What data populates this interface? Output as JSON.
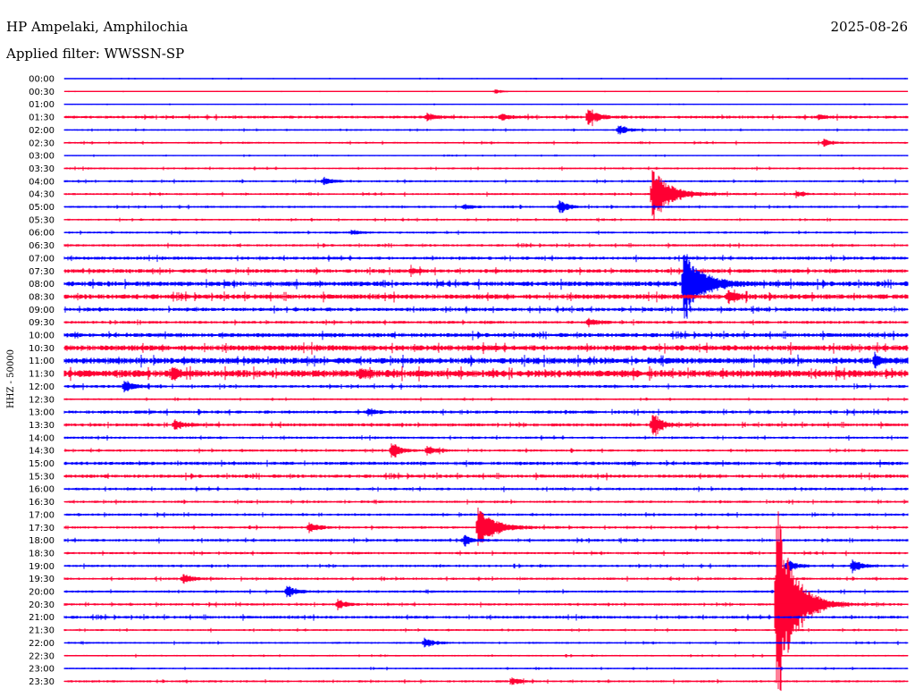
{
  "header": {
    "station": "HP Ampelaki, Amphilochia",
    "date": "2025-08-26",
    "filter_label": "Applied filter: WWSSN-SP"
  },
  "chart_data": {
    "type": "line",
    "title": "HP Ampelaki, Amphilochia",
    "ylabel": "HHZ - 50000",
    "colors": {
      "even_trace": "#0000ff",
      "odd_trace": "#ff0033"
    },
    "rows": [
      "00:00",
      "00:30",
      "01:00",
      "01:30",
      "02:00",
      "02:30",
      "03:00",
      "03:30",
      "04:00",
      "04:30",
      "05:00",
      "05:30",
      "06:00",
      "06:30",
      "07:00",
      "07:30",
      "08:00",
      "08:30",
      "09:00",
      "09:30",
      "10:00",
      "10:30",
      "11:00",
      "11:30",
      "12:00",
      "12:30",
      "13:00",
      "13:30",
      "14:00",
      "14:30",
      "15:00",
      "15:30",
      "16:00",
      "16:30",
      "17:00",
      "17:30",
      "18:00",
      "18:30",
      "19:00",
      "19:30",
      "20:00",
      "20:30",
      "21:00",
      "21:30",
      "22:00",
      "22:30",
      "23:00",
      "23:30"
    ],
    "x_range_minutes": [
      0,
      30
    ],
    "noise": [
      0.4,
      0.3,
      0.4,
      1.2,
      0.7,
      0.8,
      0.5,
      0.8,
      0.9,
      0.9,
      0.9,
      0.8,
      0.9,
      1.0,
      1.3,
      1.6,
      2.0,
      2.0,
      1.5,
      1.2,
      1.7,
      2.3,
      2.5,
      3.0,
      1.2,
      0.8,
      1.3,
      1.3,
      1.0,
      1.0,
      1.4,
      1.4,
      1.1,
      1.0,
      1.0,
      1.0,
      1.1,
      1.0,
      1.0,
      1.0,
      1.0,
      1.0,
      1.2,
      0.8,
      0.8,
      0.7,
      0.7,
      0.9
    ],
    "events": [
      {
        "row": 1,
        "t": 15.3,
        "a": 3
      },
      {
        "row": 3,
        "t": 18.6,
        "a": 12
      },
      {
        "row": 3,
        "t": 15.5,
        "a": 4
      },
      {
        "row": 3,
        "t": 12.9,
        "a": 4
      },
      {
        "row": 3,
        "t": 26.8,
        "a": 3
      },
      {
        "row": 4,
        "t": 19.7,
        "a": 6
      },
      {
        "row": 5,
        "t": 27.0,
        "a": 4
      },
      {
        "row": 8,
        "t": 9.2,
        "a": 5
      },
      {
        "row": 9,
        "t": 20.9,
        "a": 30
      },
      {
        "row": 9,
        "t": 26.0,
        "a": 3
      },
      {
        "row": 10,
        "t": 17.6,
        "a": 8
      },
      {
        "row": 10,
        "t": 14.2,
        "a": 3
      },
      {
        "row": 12,
        "t": 10.2,
        "a": 3
      },
      {
        "row": 15,
        "t": 12.3,
        "a": 3
      },
      {
        "row": 16,
        "t": 22.0,
        "a": 40
      },
      {
        "row": 17,
        "t": 23.6,
        "a": 8
      },
      {
        "row": 19,
        "t": 18.6,
        "a": 5
      },
      {
        "row": 22,
        "t": 28.8,
        "a": 7
      },
      {
        "row": 23,
        "t": 3.8,
        "a": 6
      },
      {
        "row": 23,
        "t": 10.5,
        "a": 5
      },
      {
        "row": 24,
        "t": 2.1,
        "a": 8
      },
      {
        "row": 26,
        "t": 10.8,
        "a": 3
      },
      {
        "row": 27,
        "t": 3.9,
        "a": 6
      },
      {
        "row": 27,
        "t": 20.9,
        "a": 16
      },
      {
        "row": 29,
        "t": 11.6,
        "a": 10
      },
      {
        "row": 29,
        "t": 12.9,
        "a": 5
      },
      {
        "row": 35,
        "t": 14.7,
        "a": 22
      },
      {
        "row": 35,
        "t": 8.7,
        "a": 6
      },
      {
        "row": 36,
        "t": 14.2,
        "a": 6
      },
      {
        "row": 38,
        "t": 25.7,
        "a": 8
      },
      {
        "row": 38,
        "t": 28.0,
        "a": 8
      },
      {
        "row": 39,
        "t": 4.2,
        "a": 6
      },
      {
        "row": 40,
        "t": 7.9,
        "a": 8
      },
      {
        "row": 41,
        "t": 25.3,
        "a": 120
      },
      {
        "row": 41,
        "t": 9.7,
        "a": 6
      },
      {
        "row": 44,
        "t": 12.8,
        "a": 6
      },
      {
        "row": 47,
        "t": 15.9,
        "a": 4
      }
    ]
  }
}
